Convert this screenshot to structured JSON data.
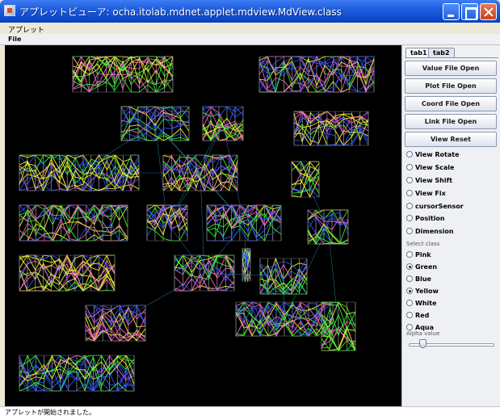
{
  "window": {
    "title": "アプレットビューア: ocha.itolab.mdnet.applet.mdview.MdView.class"
  },
  "menus": {
    "frame_menu": "アプレット",
    "applet_menu": "File"
  },
  "panel": {
    "tabs": [
      {
        "label": "tab1",
        "active": true
      },
      {
        "label": "tab2",
        "active": false
      }
    ],
    "buttons": [
      {
        "label": "Value File Open"
      },
      {
        "label": "Plot File Open"
      },
      {
        "label": "Coord File Open"
      },
      {
        "label": "Link File Open"
      },
      {
        "label": "View Reset"
      }
    ],
    "view_modes": [
      {
        "label": "View Rotate",
        "selected": false
      },
      {
        "label": "View Scale",
        "selected": false
      },
      {
        "label": "View Shift",
        "selected": false
      },
      {
        "label": "View Fix",
        "selected": false
      },
      {
        "label": "cursorSensor",
        "selected": false
      },
      {
        "label": "Position",
        "selected": false
      },
      {
        "label": "Dimension",
        "selected": false
      }
    ],
    "select_class_label": "Select class",
    "classes": [
      {
        "label": "Pink",
        "selected": false
      },
      {
        "label": "Green",
        "selected": true
      },
      {
        "label": "Blue",
        "selected": false
      },
      {
        "label": "Yellow",
        "selected": true
      },
      {
        "label": "White",
        "selected": false
      },
      {
        "label": "Red",
        "selected": false
      },
      {
        "label": "Aqua",
        "selected": false
      }
    ],
    "alpha_label": "Alpha value",
    "alpha_value": 0.17
  },
  "status": {
    "text": "アプレットが開始されました。"
  },
  "colors": {
    "viewer_bg": "#000000",
    "series": [
      "#ffff33",
      "#33ff33",
      "#ff66cc",
      "#3355ff",
      "#ffffff",
      "#33dddd"
    ]
  }
}
